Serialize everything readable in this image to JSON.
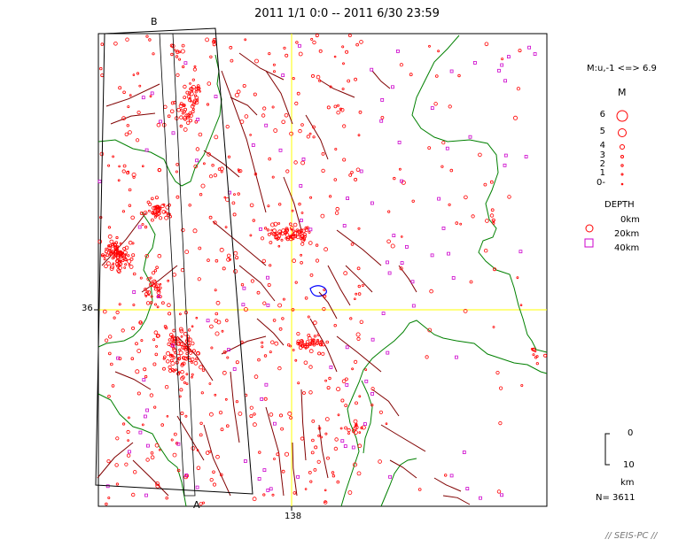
{
  "title": "2011 1/1 0:0 -- 2011 6/30 23:59",
  "section_labels": {
    "start": "A",
    "end": "B"
  },
  "axis": {
    "lat_label": "36",
    "lon_label": "138"
  },
  "magnitude_legend": {
    "range_text": "M:u,-1 <=> 6.9",
    "header": "M",
    "levels": [
      "6",
      "5",
      "4",
      "3",
      "2",
      "1",
      "0-"
    ]
  },
  "depth_legend": {
    "header": "DEPTH",
    "levels": [
      "0km",
      "20km",
      "40km"
    ]
  },
  "depth_scale": {
    "top": "0",
    "bottom": "10",
    "unit": "km"
  },
  "count": "N= 3611",
  "footer": "// SEIS-PC //",
  "colors": {
    "shallow": "#ff0000",
    "deep": "#cc00cc",
    "coast": "#008000",
    "fault": "#800000",
    "grid": "#ffff00",
    "lake": "#0000ff"
  }
}
